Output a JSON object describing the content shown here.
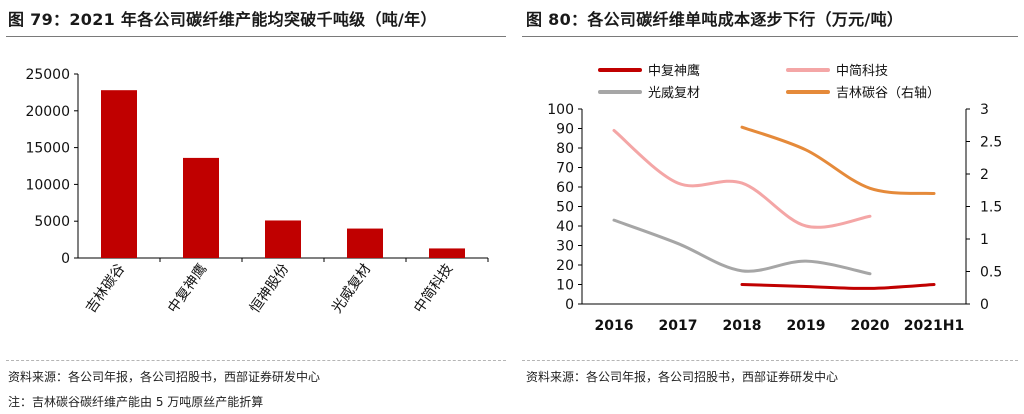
{
  "left_panel": {
    "title": "图 79：2021 年各公司碳纤维产能均突破千吨级（吨/年）",
    "source": "资料来源：各公司年报，各公司招股书，西部证券研发中心",
    "note": "注：吉林碳谷碳纤维产能由 5 万吨原丝产能折算"
  },
  "right_panel": {
    "title": "图 80：各公司碳纤维单吨成本逐步下行（万元/吨）",
    "source": "资料来源：各公司年报，各公司招股书，西部证券研发中心"
  },
  "colors": {
    "bar": "#c00000",
    "zhongfu": "#c00000",
    "zhongjian": "#f4a6a6",
    "guangwei": "#a6a6a6",
    "jilin": "#e58a3a"
  },
  "chart_data": [
    {
      "type": "bar",
      "title": "图 79：2021 年各公司碳纤维产能均突破千吨级（吨/年）",
      "categories": [
        "吉林碳谷",
        "中复神鹰",
        "恒神股份",
        "光威复材",
        "中简科技"
      ],
      "values": [
        22800,
        13600,
        5100,
        4000,
        1300
      ],
      "ylim": [
        0,
        25000
      ],
      "yticks": [
        "0",
        "5000",
        "10000",
        "15000",
        "20000",
        "25000"
      ],
      "grid": false,
      "legend": "none"
    },
    {
      "type": "line",
      "title": "图 80：各公司碳纤维单吨成本逐步下行（万元/吨）",
      "x": [
        "2016",
        "2017",
        "2018",
        "2019",
        "2020",
        "2021H1"
      ],
      "ylim": [
        0,
        100
      ],
      "yticks": [
        "0",
        "10",
        "20",
        "30",
        "40",
        "50",
        "60",
        "70",
        "80",
        "90",
        "100"
      ],
      "y2lim": [
        0,
        3
      ],
      "y2ticks": [
        "0",
        "0.5",
        "1",
        "1.5",
        "2",
        "2.5",
        "3"
      ],
      "legend": "top",
      "series": [
        {
          "name": "中复神鹰",
          "axis": "left",
          "color_key": "zhongfu",
          "values": [
            null,
            null,
            10,
            9,
            8,
            10
          ]
        },
        {
          "name": "中简科技",
          "axis": "left",
          "color_key": "zhongjian",
          "values": [
            89,
            62,
            62,
            40,
            45,
            null
          ]
        },
        {
          "name": "光威复材",
          "axis": "left",
          "color_key": "guangwei",
          "values": [
            43,
            31,
            17,
            22,
            15.5,
            null
          ]
        },
        {
          "name": "吉林碳谷（右轴）",
          "axis": "right",
          "color_key": "jilin",
          "values": [
            null,
            null,
            2.72,
            2.37,
            1.78,
            1.7
          ]
        }
      ]
    }
  ]
}
